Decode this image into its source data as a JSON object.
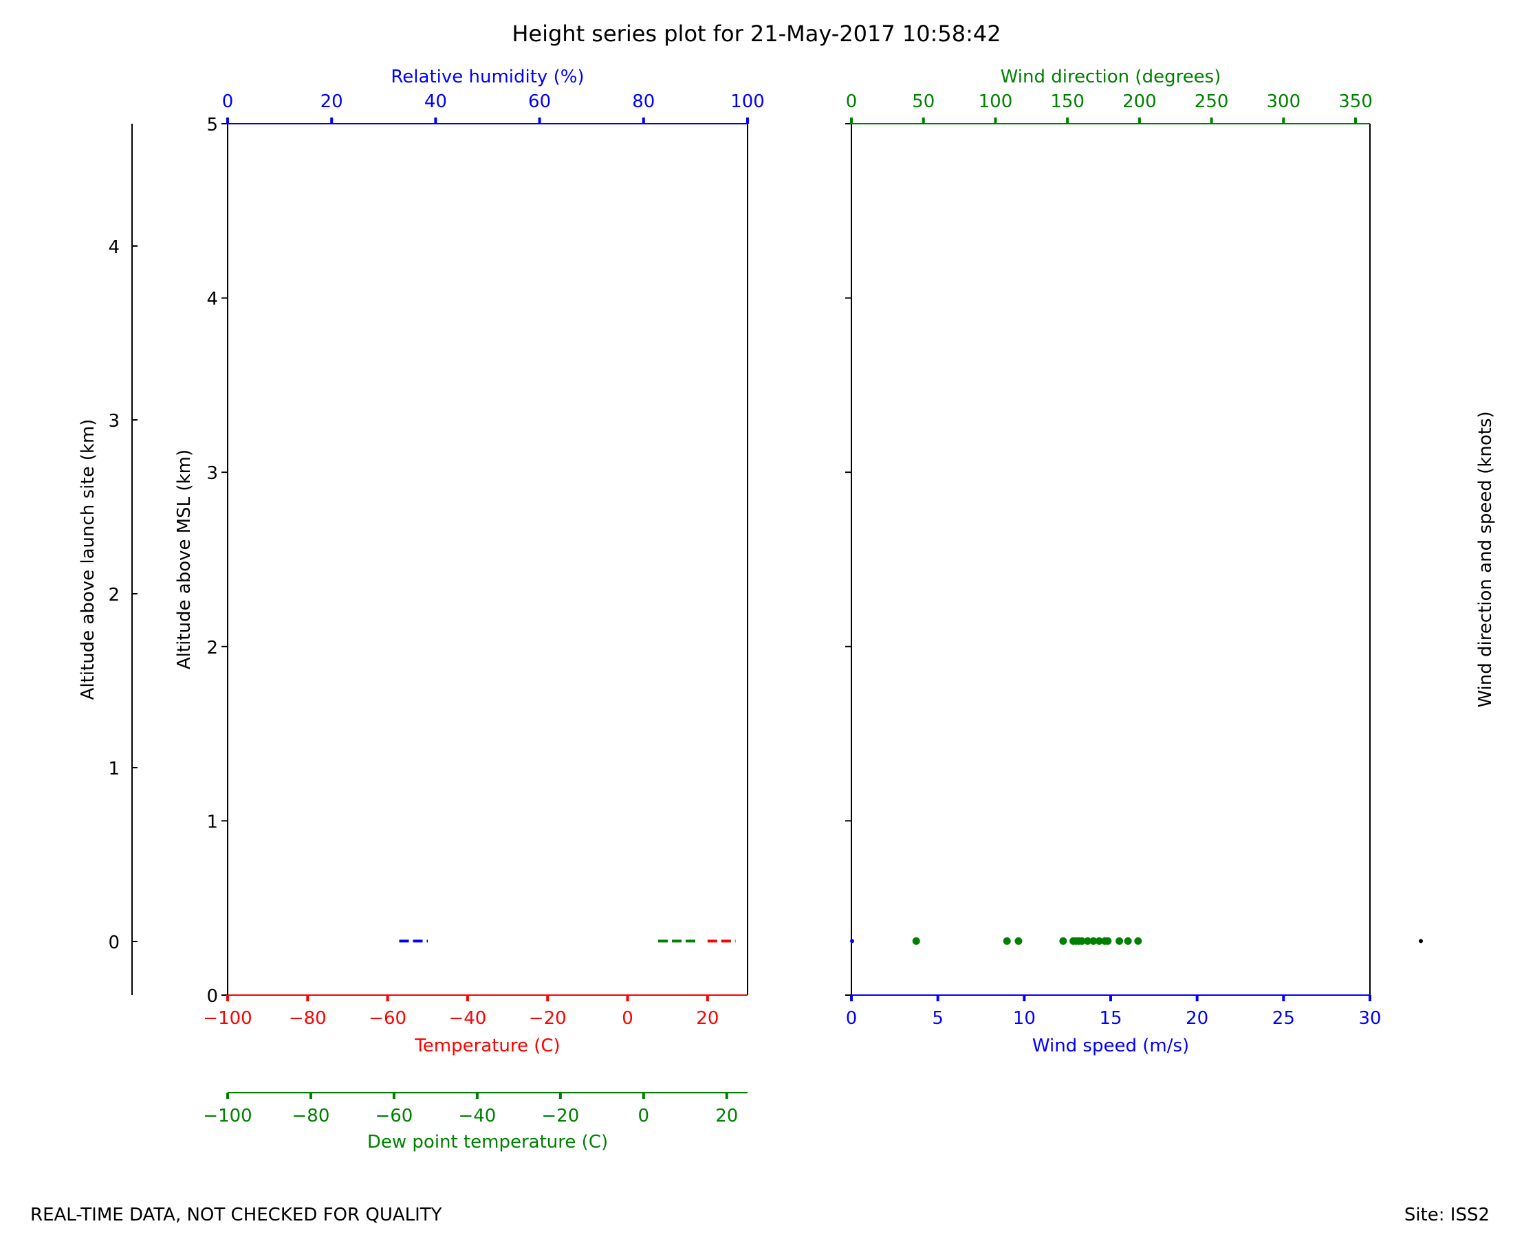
{
  "title": "Height series plot for 21-May-2017 10:58:42",
  "footer": {
    "left": "REAL-TIME DATA, NOT CHECKED FOR QUALITY",
    "right": "Site: ISS2"
  },
  "colors": {
    "temperature": "#ff0000",
    "dewpoint": "#008000",
    "humidity": "#0000ff",
    "wind_direction": "#008000",
    "wind_speed": "#0000ff",
    "axes": "#000000"
  },
  "chart_data": [
    {
      "type": "line",
      "panel": "thermodynamics",
      "ylabel": "Altitude above MSL (km)",
      "ylim": [
        0,
        5
      ],
      "yticks": [
        0,
        1,
        2,
        3,
        4,
        5
      ],
      "secondary_y": {
        "label": "Altitude above launch site (km)",
        "ticks": [
          0,
          1,
          2,
          3,
          4
        ]
      },
      "axes": {
        "temperature": {
          "label": "Temperature (C)",
          "lim": [
            -100,
            30
          ],
          "ticks": [
            -100,
            -80,
            -60,
            -40,
            -20,
            0,
            20
          ]
        },
        "dewpoint": {
          "label": "Dew point temperature (C)",
          "lim": [
            -100,
            25
          ],
          "ticks": [
            -100,
            -80,
            -60,
            -40,
            -20,
            0,
            20
          ]
        },
        "humidity": {
          "label": "Relative humidity (%)",
          "lim": [
            0,
            100
          ],
          "ticks": [
            0,
            20,
            40,
            60,
            80,
            100
          ]
        }
      },
      "series": [
        {
          "name": "Temperature (C)",
          "axis": "temperature",
          "points": [
            [
              20.0,
              0.31
            ],
            [
              21.5,
              0.31
            ],
            [
              23.0,
              0.31
            ],
            [
              25.0,
              0.31
            ],
            [
              27.0,
              0.31
            ]
          ]
        },
        {
          "name": "Dew point temperature (C)",
          "axis": "dewpoint",
          "points": [
            [
              3.5,
              0.31
            ],
            [
              6.0,
              0.31
            ],
            [
              8.0,
              0.31
            ],
            [
              10.5,
              0.31
            ],
            [
              13.0,
              0.31
            ]
          ]
        },
        {
          "name": "Relative humidity (%)",
          "axis": "humidity",
          "points": [
            [
              33.0,
              0.31
            ],
            [
              35.0,
              0.31
            ],
            [
              37.0,
              0.31
            ],
            [
              38.5,
              0.31
            ]
          ]
        }
      ]
    },
    {
      "type": "scatter",
      "panel": "wind",
      "ylim": [
        0,
        5
      ],
      "yticks": [
        0,
        1,
        2,
        3,
        4,
        5
      ],
      "right_label": "Wind direction and speed (knots)",
      "axes": {
        "wind_direction": {
          "label": "Wind direction (degrees)",
          "lim": [
            0,
            360
          ],
          "ticks": [
            0,
            50,
            100,
            150,
            200,
            250,
            300,
            350
          ]
        },
        "wind_speed": {
          "label": "Wind speed (m/s)",
          "lim": [
            0,
            30
          ],
          "ticks": [
            0,
            5,
            10,
            15,
            20,
            25,
            30
          ]
        }
      },
      "series": [
        {
          "name": "Wind direction (degrees)",
          "axis": "wind_direction",
          "points": [
            [
              45,
              0.31
            ],
            [
              108,
              0.31
            ],
            [
              116,
              0.31
            ],
            [
              147,
              0.31
            ],
            [
              154,
              0.31
            ],
            [
              156,
              0.31
            ],
            [
              158,
              0.31
            ],
            [
              160,
              0.31
            ],
            [
              164,
              0.31
            ],
            [
              168,
              0.31
            ],
            [
              172,
              0.31
            ],
            [
              176,
              0.31
            ],
            [
              178,
              0.31
            ],
            [
              186,
              0.31
            ],
            [
              192,
              0.31
            ],
            [
              199,
              0.31
            ]
          ]
        },
        {
          "name": "Wind speed (m/s)",
          "axis": "wind_speed",
          "points": [
            [
              0,
              0.31
            ]
          ]
        },
        {
          "name": "Wind direction and speed (knots)",
          "axis": "barbs",
          "points": [
            [
              0,
              0.31
            ]
          ]
        }
      ]
    }
  ]
}
